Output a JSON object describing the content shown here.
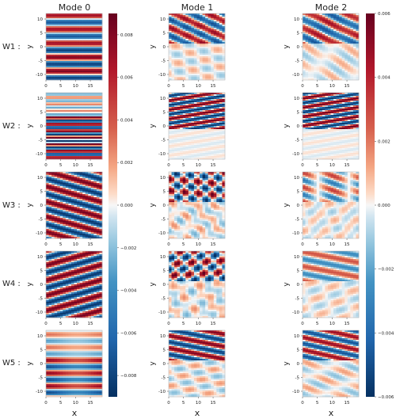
{
  "chart_data": {
    "type": "heatmap",
    "columns": [
      "Mode 0",
      "Mode 1",
      "Mode 2"
    ],
    "rows": [
      "W1 :",
      "W2 :",
      "W3 :",
      "W4 :",
      "W5 :"
    ],
    "xlabel": "x",
    "ylabel": "y",
    "xlim": [
      0,
      19
    ],
    "ylim": [
      -12,
      12
    ],
    "xticks": [
      "0",
      "5",
      "10",
      "15"
    ],
    "yticks": [
      "10",
      "5",
      "0",
      "-5",
      "-10"
    ],
    "colormap": "RdBu_r",
    "colors": {
      "neg": "#053061",
      "mid": "#f7f7f7",
      "pos": "#67001f"
    },
    "colorbars": [
      {
        "range": [
          -0.009,
          0.009
        ],
        "ticks": [
          "0.008",
          "0.006",
          "0.004",
          "0.002",
          "0.000",
          "−0.002",
          "−0.004",
          "−0.006",
          "−0.008"
        ],
        "tick_values": [
          0.008,
          0.006,
          0.004,
          0.002,
          0.0,
          -0.002,
          -0.004,
          -0.006,
          -0.008
        ]
      },
      {
        "range": [
          -0.006,
          0.006
        ],
        "ticks": [
          "0.006",
          "0.004",
          "0.002",
          "0.000",
          "−0.002",
          "−0.004",
          "−0.006"
        ],
        "tick_values": [
          0.006,
          0.004,
          0.002,
          0.0,
          -0.002,
          -0.004,
          -0.006
        ]
      }
    ]
  }
}
